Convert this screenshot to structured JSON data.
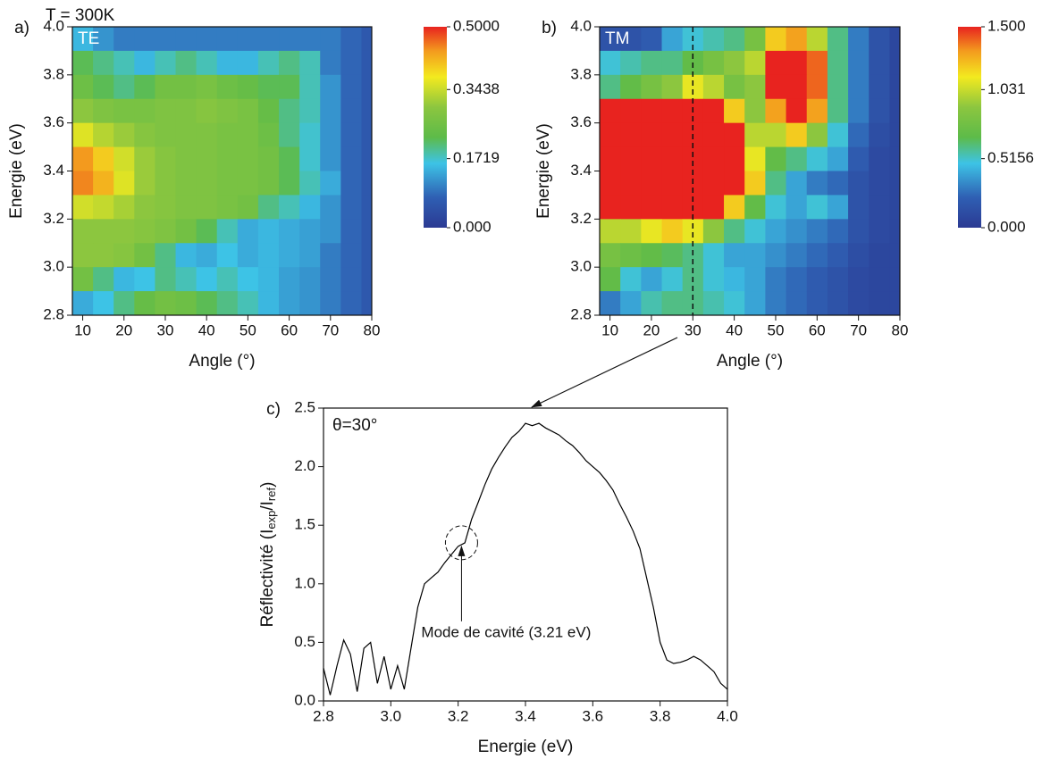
{
  "chart_data": [
    {
      "type": "heatmap",
      "panel_label": "a)",
      "annotation": "T = 300K",
      "inset_label": "TE",
      "xlabel": "Angle (°)",
      "ylabel": "Energie (eV)",
      "xlim": [
        7.5,
        80
      ],
      "xticks": [
        10,
        20,
        30,
        40,
        50,
        60,
        70,
        80
      ],
      "ylim": [
        2.8,
        4.0
      ],
      "yticks": [
        2.8,
        {
          "value": 3.0,
          "label": "3.0"
        },
        3.2,
        3.4,
        3.6,
        3.8,
        {
          "value": 4.0,
          "label": "4.0"
        }
      ],
      "zlim": [
        0,
        0.5
      ],
      "zticks": [
        {
          "value": 0,
          "label": "0.000"
        },
        0.1719,
        0.3438,
        {
          "value": 0.5,
          "label": "0.5000"
        }
      ],
      "x": [
        10,
        15,
        20,
        25,
        30,
        35,
        40,
        45,
        50,
        55,
        60,
        65,
        70,
        75,
        80
      ],
      "y": [
        3.95,
        3.85,
        3.75,
        3.65,
        3.55,
        3.45,
        3.35,
        3.25,
        3.15,
        3.05,
        2.95,
        2.85
      ],
      "z": [
        [
          0.15,
          0.12,
          0.1,
          0.1,
          0.1,
          0.1,
          0.1,
          0.1,
          0.1,
          0.1,
          0.1,
          0.1,
          0.1,
          0.08,
          0.06
        ],
        [
          0.22,
          0.2,
          0.18,
          0.15,
          0.18,
          0.2,
          0.18,
          0.15,
          0.15,
          0.18,
          0.2,
          0.18,
          0.1,
          0.08,
          0.06
        ],
        [
          0.25,
          0.22,
          0.2,
          0.22,
          0.26,
          0.26,
          0.27,
          0.25,
          0.24,
          0.22,
          0.22,
          0.18,
          0.12,
          0.08,
          0.06
        ],
        [
          0.3,
          0.28,
          0.27,
          0.27,
          0.28,
          0.28,
          0.29,
          0.28,
          0.27,
          0.24,
          0.2,
          0.18,
          0.12,
          0.08,
          0.06
        ],
        [
          0.36,
          0.33,
          0.31,
          0.29,
          0.28,
          0.28,
          0.28,
          0.27,
          0.27,
          0.25,
          0.2,
          0.17,
          0.12,
          0.08,
          0.06
        ],
        [
          0.44,
          0.4,
          0.35,
          0.31,
          0.29,
          0.28,
          0.28,
          0.27,
          0.27,
          0.26,
          0.22,
          0.17,
          0.12,
          0.08,
          0.06
        ],
        [
          0.45,
          0.42,
          0.36,
          0.31,
          0.29,
          0.28,
          0.28,
          0.27,
          0.27,
          0.26,
          0.22,
          0.18,
          0.14,
          0.08,
          0.06
        ],
        [
          0.35,
          0.34,
          0.32,
          0.3,
          0.29,
          0.28,
          0.28,
          0.27,
          0.26,
          0.2,
          0.18,
          0.15,
          0.12,
          0.08,
          0.06
        ],
        [
          0.3,
          0.3,
          0.3,
          0.29,
          0.28,
          0.26,
          0.22,
          0.18,
          0.14,
          0.15,
          0.14,
          0.13,
          0.12,
          0.08,
          0.06
        ],
        [
          0.3,
          0.3,
          0.29,
          0.26,
          0.2,
          0.15,
          0.14,
          0.16,
          0.14,
          0.15,
          0.14,
          0.13,
          0.1,
          0.08,
          0.06
        ],
        [
          0.26,
          0.2,
          0.15,
          0.16,
          0.2,
          0.18,
          0.16,
          0.18,
          0.16,
          0.15,
          0.13,
          0.12,
          0.1,
          0.08,
          0.06
        ],
        [
          0.14,
          0.16,
          0.2,
          0.24,
          0.26,
          0.25,
          0.22,
          0.2,
          0.18,
          0.15,
          0.13,
          0.12,
          0.1,
          0.08,
          0.06
        ]
      ]
    },
    {
      "type": "heatmap",
      "panel_label": "b)",
      "inset_label": "TM",
      "xlabel": "Angle (°)",
      "ylabel": "Energie (eV)",
      "xlim": [
        7.5,
        80
      ],
      "xticks": [
        10,
        20,
        30,
        40,
        50,
        60,
        70,
        80
      ],
      "ylim": [
        2.8,
        4.0
      ],
      "yticks": [
        2.8,
        {
          "value": 3.0,
          "label": "3.0"
        },
        3.2,
        3.4,
        3.6,
        3.8,
        {
          "value": 4.0,
          "label": "4.0"
        }
      ],
      "zlim": [
        0,
        1.5
      ],
      "zticks": [
        {
          "value": 0,
          "label": "0.000"
        },
        0.5156,
        1.031,
        {
          "value": 1.5,
          "label": "1.500"
        }
      ],
      "cut_angle": 30,
      "x": [
        10,
        15,
        20,
        25,
        30,
        35,
        40,
        45,
        50,
        55,
        60,
        65,
        70,
        75,
        80
      ],
      "y": [
        3.95,
        3.85,
        3.75,
        3.65,
        3.55,
        3.45,
        3.35,
        3.25,
        3.15,
        3.05,
        2.95,
        2.85
      ],
      "z": [
        [
          0.15,
          0.15,
          0.2,
          0.4,
          0.5,
          0.55,
          0.6,
          0.8,
          1.2,
          1.3,
          1.0,
          0.6,
          0.3,
          0.15,
          0.08
        ],
        [
          0.5,
          0.55,
          0.6,
          0.6,
          0.7,
          0.8,
          0.9,
          1.0,
          1.5,
          1.5,
          1.4,
          0.6,
          0.3,
          0.15,
          0.08
        ],
        [
          0.6,
          0.7,
          0.8,
          0.9,
          1.1,
          1.0,
          0.8,
          0.9,
          1.5,
          1.5,
          1.4,
          0.6,
          0.3,
          0.15,
          0.08
        ],
        [
          1.5,
          1.5,
          1.5,
          1.5,
          1.5,
          1.5,
          1.2,
          0.9,
          1.3,
          1.5,
          1.3,
          0.6,
          0.3,
          0.15,
          0.08
        ],
        [
          1.5,
          1.5,
          1.5,
          1.5,
          1.5,
          1.5,
          1.5,
          1.0,
          1.0,
          1.2,
          0.9,
          0.5,
          0.25,
          0.12,
          0.08
        ],
        [
          1.5,
          1.5,
          1.5,
          1.5,
          1.5,
          1.5,
          1.5,
          1.1,
          0.7,
          0.6,
          0.5,
          0.4,
          0.2,
          0.1,
          0.08
        ],
        [
          1.5,
          1.5,
          1.5,
          1.5,
          1.5,
          1.5,
          1.5,
          1.2,
          0.6,
          0.4,
          0.3,
          0.25,
          0.15,
          0.1,
          0.08
        ],
        [
          1.5,
          1.5,
          1.5,
          1.5,
          1.5,
          1.5,
          1.2,
          0.7,
          0.5,
          0.4,
          0.5,
          0.4,
          0.15,
          0.1,
          0.08
        ],
        [
          1.0,
          1.0,
          1.1,
          1.2,
          1.1,
          0.9,
          0.6,
          0.5,
          0.4,
          0.35,
          0.3,
          0.25,
          0.15,
          0.1,
          0.08
        ],
        [
          0.8,
          0.75,
          0.7,
          0.65,
          0.6,
          0.5,
          0.4,
          0.4,
          0.35,
          0.3,
          0.25,
          0.2,
          0.12,
          0.08,
          0.08
        ],
        [
          0.7,
          0.5,
          0.4,
          0.5,
          0.6,
          0.5,
          0.45,
          0.4,
          0.3,
          0.25,
          0.2,
          0.15,
          0.1,
          0.08,
          0.08
        ],
        [
          0.3,
          0.4,
          0.55,
          0.6,
          0.6,
          0.55,
          0.5,
          0.4,
          0.3,
          0.25,
          0.2,
          0.15,
          0.1,
          0.08,
          0.08
        ]
      ]
    },
    {
      "type": "line",
      "panel_label": "c)",
      "annotation": "θ=30°",
      "callout": "Mode de cavité (3.21 eV)",
      "xlabel": "Energie (eV)",
      "ylabel_parts": [
        "Réflectivité (I",
        "exp",
        "/I",
        "ref",
        ")"
      ],
      "xlim": [
        2.8,
        4.0
      ],
      "xticks": [
        2.8,
        {
          "value": 3.0,
          "label": "3.0"
        },
        3.2,
        3.4,
        3.6,
        3.8,
        {
          "value": 4.0,
          "label": "4.0"
        }
      ],
      "ylim": [
        0,
        2.5
      ],
      "yticks": [
        {
          "value": 0,
          "label": "0.0"
        },
        0.5,
        {
          "value": 1.0,
          "label": "1.0"
        },
        1.5,
        {
          "value": 2.0,
          "label": "2.0"
        },
        2.5
      ],
      "color": "#000000",
      "highlight": {
        "x": 3.21,
        "y": 1.35
      },
      "x": [
        2.8,
        2.82,
        2.84,
        2.86,
        2.88,
        2.9,
        2.92,
        2.94,
        2.96,
        2.98,
        3.0,
        3.02,
        3.04,
        3.06,
        3.08,
        3.1,
        3.12,
        3.14,
        3.16,
        3.18,
        3.2,
        3.22,
        3.24,
        3.26,
        3.28,
        3.3,
        3.32,
        3.34,
        3.36,
        3.38,
        3.4,
        3.42,
        3.44,
        3.46,
        3.48,
        3.5,
        3.52,
        3.54,
        3.56,
        3.58,
        3.6,
        3.62,
        3.64,
        3.66,
        3.68,
        3.7,
        3.72,
        3.74,
        3.76,
        3.78,
        3.8,
        3.82,
        3.84,
        3.86,
        3.88,
        3.9,
        3.92,
        3.94,
        3.96,
        3.98,
        4.0
      ],
      "values": [
        0.28,
        0.05,
        0.3,
        0.52,
        0.4,
        0.08,
        0.45,
        0.5,
        0.15,
        0.38,
        0.1,
        0.3,
        0.1,
        0.45,
        0.8,
        1.0,
        1.05,
        1.1,
        1.18,
        1.25,
        1.32,
        1.35,
        1.55,
        1.7,
        1.85,
        1.98,
        2.08,
        2.17,
        2.25,
        2.3,
        2.37,
        2.35,
        2.37,
        2.33,
        2.3,
        2.27,
        2.22,
        2.18,
        2.12,
        2.05,
        2.0,
        1.95,
        1.88,
        1.8,
        1.68,
        1.57,
        1.45,
        1.3,
        1.05,
        0.8,
        0.5,
        0.35,
        0.32,
        0.33,
        0.35,
        0.38,
        0.35,
        0.3,
        0.25,
        0.15,
        0.1
      ]
    }
  ]
}
